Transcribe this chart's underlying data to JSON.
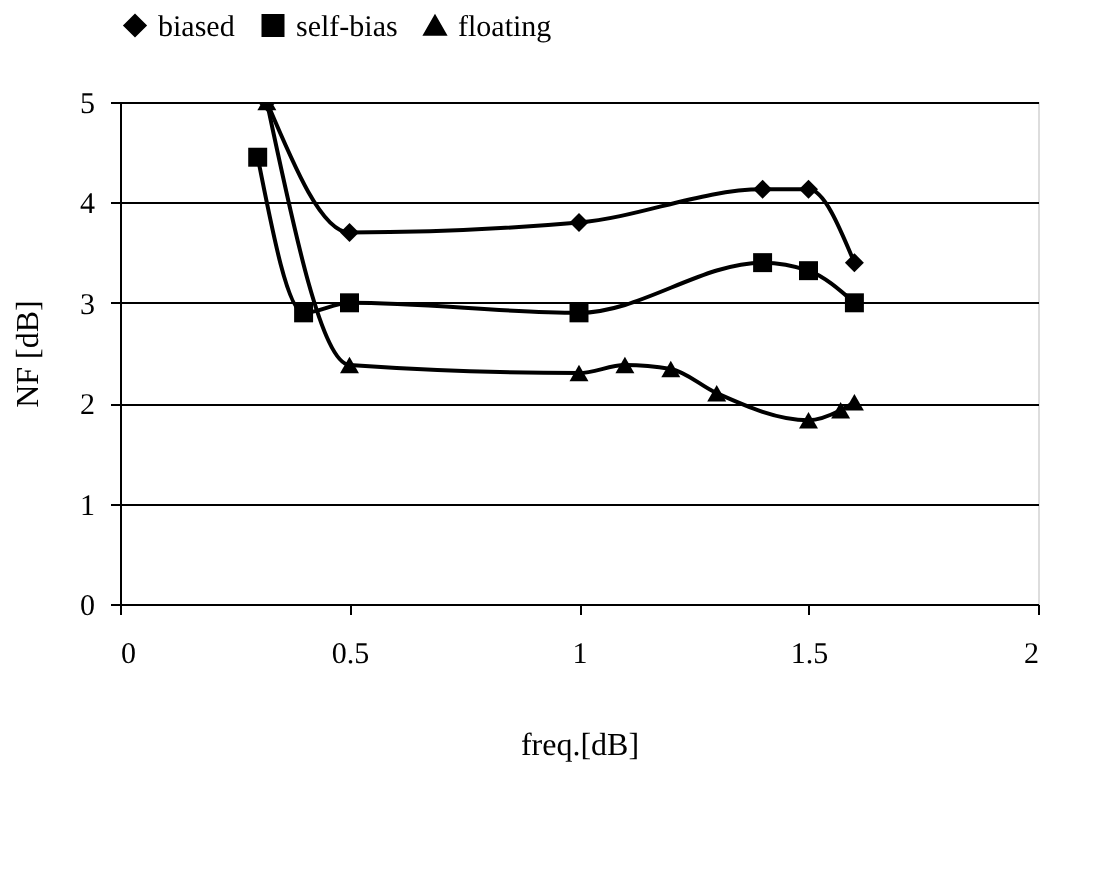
{
  "chart_data": {
    "type": "line",
    "xlabel": "freq.[dB]",
    "ylabel": "NF [dB]",
    "xlim": [
      0,
      2
    ],
    "xticks": [
      0,
      0.5,
      1,
      1.5,
      2
    ],
    "ylim": [
      0,
      5
    ],
    "yticks": [
      0,
      1,
      2,
      3,
      4,
      5
    ],
    "grid": "y",
    "legend": "top",
    "line_style": "solid",
    "series": [
      {
        "name": "biased",
        "color": "#000000",
        "marker": "diamond",
        "x": [
          0.32,
          0.5,
          1.0,
          1.4,
          1.5,
          1.6
        ],
        "values": [
          5.0,
          3.7,
          3.8,
          4.13,
          4.13,
          3.4
        ]
      },
      {
        "name": "self-bias",
        "color": "#000000",
        "marker": "square",
        "x": [
          0.3,
          0.4,
          0.5,
          1.0,
          1.4,
          1.5,
          1.6
        ],
        "values": [
          4.45,
          2.9,
          3.0,
          2.9,
          3.4,
          3.32,
          3.0
        ]
      },
      {
        "name": "floating",
        "color": "#000000",
        "marker": "triangle",
        "x": [
          0.32,
          0.5,
          1.0,
          1.1,
          1.2,
          1.3,
          1.5,
          1.57,
          1.6
        ],
        "values": [
          5.0,
          2.38,
          2.3,
          2.38,
          2.34,
          2.1,
          1.83,
          1.93,
          2.01
        ]
      }
    ]
  }
}
